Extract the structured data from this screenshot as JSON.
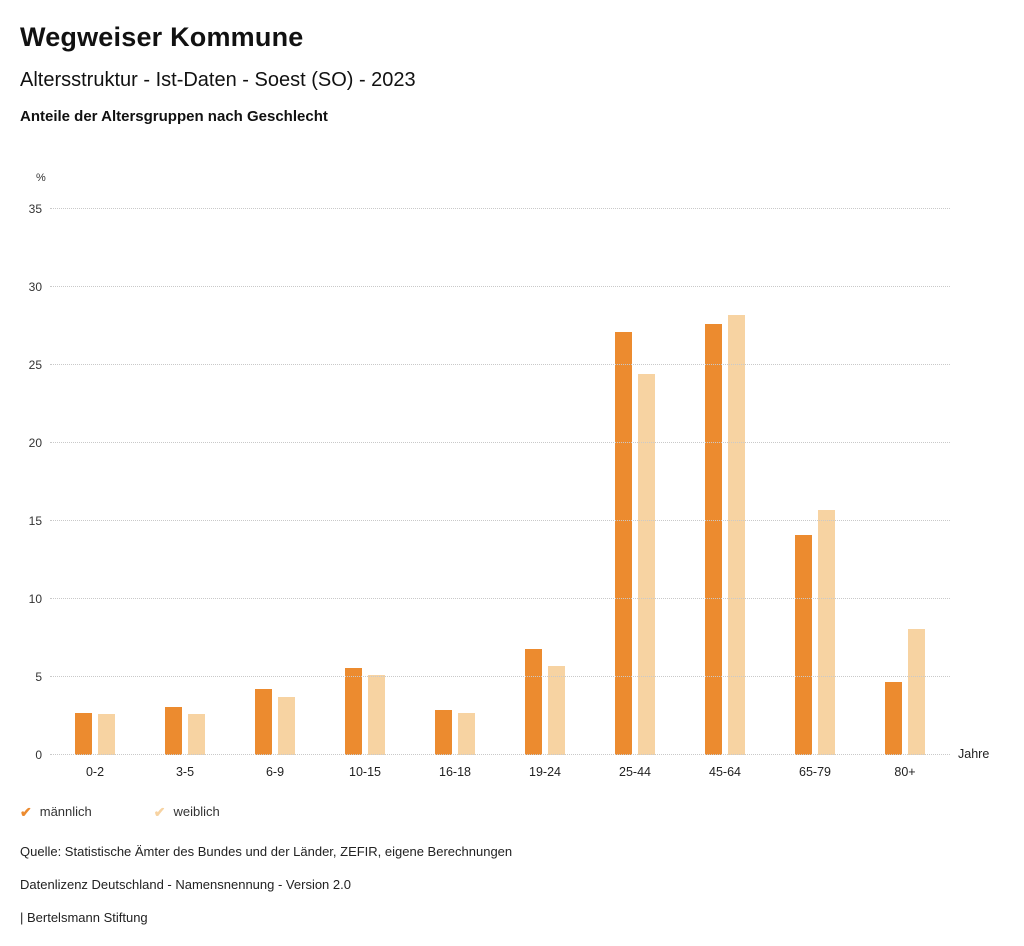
{
  "header": {
    "title": "Wegweiser Kommune",
    "subtitle": "Altersstruktur - Ist-Daten - Soest (SO) - 2023",
    "chart_title": "Anteile der Altersgruppen nach Geschlecht"
  },
  "chart_data": {
    "type": "bar",
    "title": "Anteile der Altersgruppen nach Geschlecht",
    "categories": [
      "0-2",
      "3-5",
      "6-9",
      "10-15",
      "16-18",
      "19-24",
      "25-44",
      "45-64",
      "65-79",
      "80+"
    ],
    "series": [
      {
        "name": "männlich",
        "color": "#EC8B2F",
        "values": [
          2.7,
          3.1,
          4.2,
          5.6,
          2.9,
          6.8,
          27.1,
          27.6,
          14.1,
          4.7
        ]
      },
      {
        "name": "weiblich",
        "color": "#F7D3A2",
        "values": [
          2.6,
          2.6,
          3.7,
          5.1,
          2.7,
          5.7,
          24.4,
          28.2,
          15.7,
          8.1
        ]
      }
    ],
    "ylabel": "%",
    "xlabel": "Jahre",
    "ylim": [
      0,
      35
    ],
    "ytick_step": 5,
    "grid": "dotted horizontal",
    "legend_position": "bottom-left"
  },
  "legend": {
    "items": [
      {
        "label": "männlich",
        "color": "#EC8B2F",
        "marker": "check"
      },
      {
        "label": "weiblich",
        "color": "#F7D3A2",
        "marker": "check"
      }
    ]
  },
  "footer": {
    "line1": "Quelle: Statistische Ämter des Bundes und der Länder, ZEFIR, eigene Berechnungen",
    "line2": "Datenlizenz Deutschland - Namensnennung - Version 2.0",
    "line3": "| Bertelsmann Stiftung"
  }
}
